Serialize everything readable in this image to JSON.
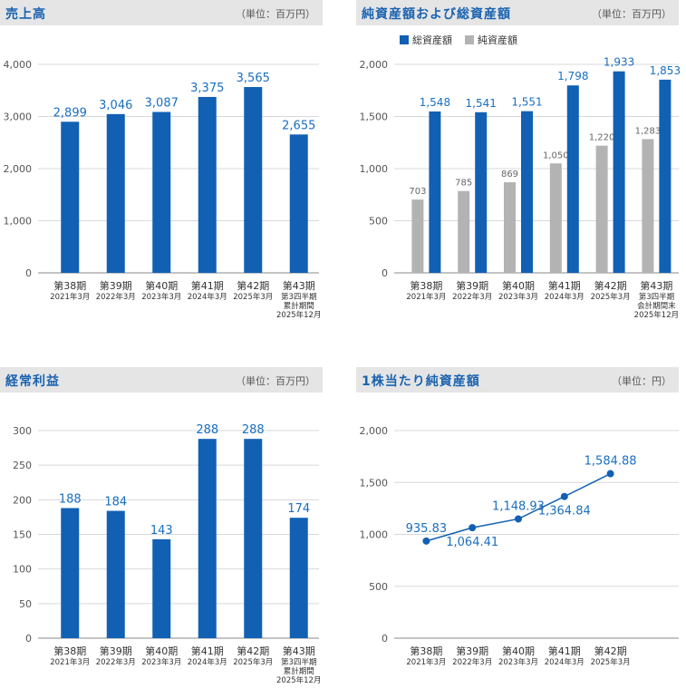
{
  "colors": {
    "blue": "#1160b4",
    "gray": "#b3b3b3",
    "label_blue": "#1a6fc0",
    "axis": "#555555"
  },
  "panels": {
    "sales": {
      "title": "売上高",
      "unit": "（単位：百万円）"
    },
    "assets": {
      "title": "純資産額および総資産額",
      "unit": "（単位：百万円）"
    },
    "ordinary": {
      "title": "経常利益",
      "unit": "（単位：百万円）"
    },
    "bps": {
      "title": "1株当たり純資産額",
      "unit": "（単位：円）"
    }
  },
  "chart_data": [
    {
      "id": "sales",
      "type": "bar",
      "title": "売上高",
      "categories": [
        [
          "第38期",
          "2021年3月"
        ],
        [
          "第39期",
          "2022年3月"
        ],
        [
          "第40期",
          "2023年3月"
        ],
        [
          "第41期",
          "2024年3月"
        ],
        [
          "第42期",
          "2025年3月"
        ],
        [
          "第43期",
          "第3四半期",
          "累計期間",
          "2025年12月"
        ]
      ],
      "series": [
        {
          "values": [
            2899,
            3046,
            3087,
            3375,
            3565,
            2655
          ],
          "labels": [
            "2,899",
            "3,046",
            "3,087",
            "3,375",
            "3,565",
            "2,655"
          ],
          "color": "#1160b4"
        }
      ],
      "ylim": [
        0,
        4000
      ],
      "yticks": [
        0,
        1000,
        2000,
        3000,
        4000
      ],
      "ytick_labels": [
        "0",
        "1,000",
        "2,000",
        "3,000",
        "4,000"
      ],
      "grid": true
    },
    {
      "id": "assets",
      "type": "bar",
      "title": "純資産額および総資産額",
      "legend": [
        "総資産額",
        "純資産額"
      ],
      "legend_position": "top-left",
      "categories": [
        [
          "第38期",
          "2021年3月"
        ],
        [
          "第39期",
          "2022年3月"
        ],
        [
          "第40期",
          "2023年3月"
        ],
        [
          "第41期",
          "2024年3月"
        ],
        [
          "第42期",
          "2025年3月"
        ],
        [
          "第43期",
          "第3四半期",
          "会計期間末",
          "2025年12月"
        ]
      ],
      "series": [
        {
          "name": "純資産額",
          "values": [
            703,
            785,
            869,
            1050,
            1220,
            1283
          ],
          "labels": [
            "703",
            "785",
            "869",
            "1,050",
            "1,220",
            "1,283"
          ],
          "color": "#b3b3b3"
        },
        {
          "name": "総資産額",
          "values": [
            1548,
            1541,
            1551,
            1798,
            1933,
            1853
          ],
          "labels": [
            "1,548",
            "1,541",
            "1,551",
            "1,798",
            "1,933",
            "1,853"
          ],
          "color": "#1160b4"
        }
      ],
      "ylim": [
        0,
        2000
      ],
      "yticks": [
        0,
        500,
        1000,
        1500,
        2000
      ],
      "ytick_labels": [
        "0",
        "500",
        "1,000",
        "1,500",
        "2,000"
      ],
      "grid": true
    },
    {
      "id": "ordinary",
      "type": "bar",
      "title": "経常利益",
      "categories": [
        [
          "第38期",
          "2021年3月"
        ],
        [
          "第39期",
          "2022年3月"
        ],
        [
          "第40期",
          "2023年3月"
        ],
        [
          "第41期",
          "2024年3月"
        ],
        [
          "第42期",
          "2025年3月"
        ],
        [
          "第43期",
          "第3四半期",
          "累計期間",
          "2025年12月"
        ]
      ],
      "series": [
        {
          "values": [
            188,
            184,
            143,
            288,
            288,
            174
          ],
          "labels": [
            "188",
            "184",
            "143",
            "288",
            "288",
            "174"
          ],
          "color": "#1160b4"
        }
      ],
      "ylim": [
        0,
        300
      ],
      "yticks": [
        0,
        50,
        100,
        150,
        200,
        250,
        300
      ],
      "ytick_labels": [
        "0",
        "50",
        "100",
        "150",
        "200",
        "250",
        "300"
      ],
      "grid": true
    },
    {
      "id": "bps",
      "type": "line",
      "title": "1株当たり純資産額",
      "categories": [
        [
          "第38期",
          "2021年3月"
        ],
        [
          "第39期",
          "2022年3月"
        ],
        [
          "第40期",
          "2023年3月"
        ],
        [
          "第41期",
          "2024年3月"
        ],
        [
          "第42期",
          "2025年3月"
        ]
      ],
      "slots": 6,
      "series": [
        {
          "values": [
            935.83,
            1064.41,
            1148.93,
            1364.84,
            1584.88
          ],
          "labels": [
            "935.83",
            "1,064.41",
            "1,148.93",
            "1,364.84",
            "1,584.88"
          ],
          "label_side": [
            "above",
            "below",
            "above",
            "below",
            "above"
          ],
          "color": "#1160b4"
        }
      ],
      "ylim": [
        0,
        2000
      ],
      "yticks": [
        0,
        500,
        1000,
        1500,
        2000
      ],
      "ytick_labels": [
        "0",
        "500",
        "1,000",
        "1,500",
        "2,000"
      ],
      "grid": true
    }
  ]
}
